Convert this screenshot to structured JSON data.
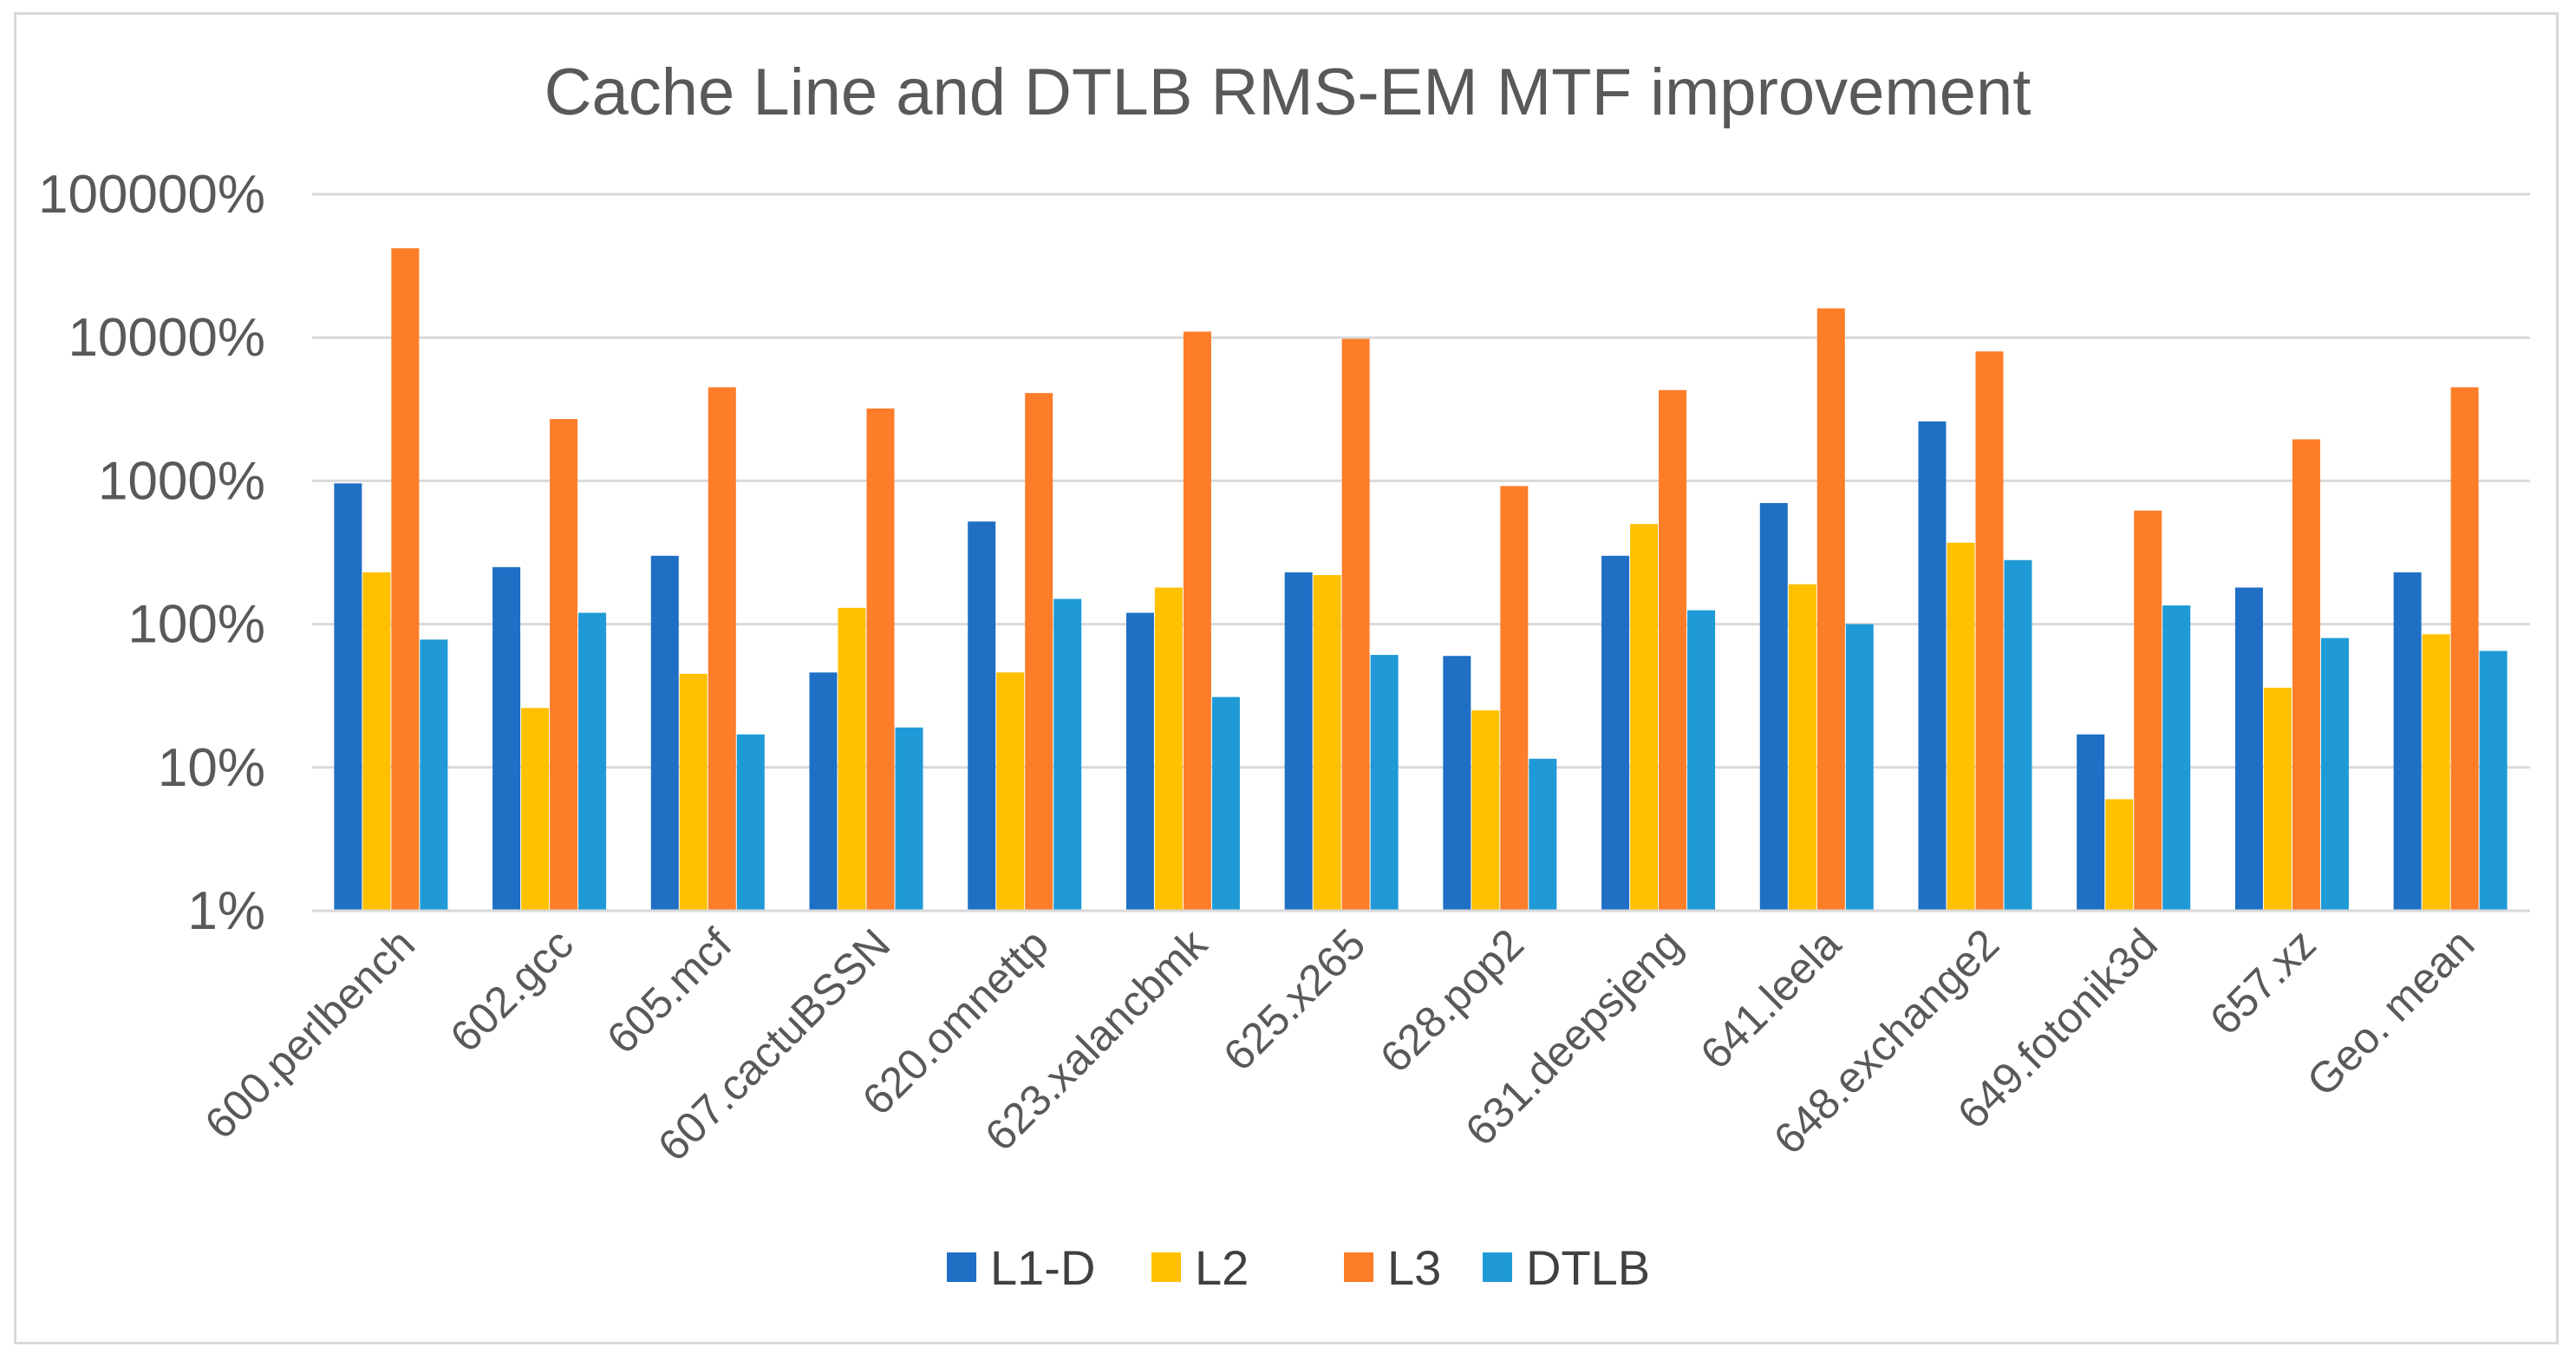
{
  "chart_data": {
    "type": "bar",
    "title": "Cache Line and DTLB RMS-EM MTF improvement",
    "xlabel": "",
    "ylabel": "",
    "scale": "log",
    "ylim": [
      1,
      100000
    ],
    "yticks": [
      1,
      10,
      100,
      1000,
      10000,
      100000
    ],
    "ytick_labels": [
      "1%",
      "10%",
      "100%",
      "1000%",
      "10000%",
      "100000%"
    ],
    "grid": true,
    "legend_position": "bottom",
    "categories": [
      "600.perlbench",
      "602.gcc",
      "605.mcf",
      "607.cactuBSSN",
      "620.omnettp",
      "623.xalancbmk",
      "625.x265",
      "628.pop2",
      "631.deepsjeng",
      "641.leela",
      "648.exchange2",
      "649.fotonik3d",
      "657.xz",
      "Geo. mean"
    ],
    "series": [
      {
        "name": "L1-D",
        "color": "#1f6fc5",
        "values": [
          960,
          250,
          300,
          46,
          520,
          120,
          230,
          60,
          300,
          700,
          2600,
          17,
          180,
          230
        ]
      },
      {
        "name": "L2",
        "color": "#ffc000",
        "values": [
          230,
          26,
          45,
          130,
          46,
          180,
          220,
          25,
          500,
          190,
          370,
          6,
          36,
          85
        ]
      },
      {
        "name": "L3",
        "color": "#fd7d29",
        "values": [
          42000,
          2700,
          4500,
          3200,
          4100,
          11000,
          9800,
          920,
          4300,
          16000,
          8000,
          620,
          1950,
          4500
        ]
      },
      {
        "name": "DTLB",
        "color": "#1f9ad6",
        "values": [
          78,
          120,
          17,
          19,
          150,
          31,
          61,
          11.5,
          125,
          100,
          280,
          135,
          80,
          65
        ]
      }
    ]
  }
}
